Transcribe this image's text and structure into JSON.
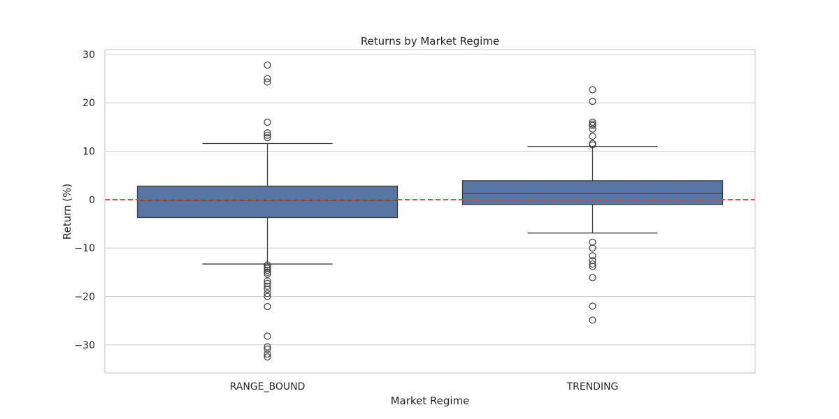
{
  "chart_data": {
    "type": "box",
    "title": "Returns by Market Regime",
    "xlabel": "Market Regime",
    "ylabel": "Return (%)",
    "ylim": [
      -35.8,
      31.0
    ],
    "yticks": [
      30,
      20,
      10,
      0,
      -10,
      -20,
      -30
    ],
    "ytick_labels": [
      "30",
      "20",
      "10",
      "0",
      "−10",
      "−20",
      "−30"
    ],
    "grid": true,
    "box_color": "#5875a4",
    "edge_color": "#3d3d3d",
    "reference_line": {
      "y": 0,
      "color": "#d24a4a",
      "style": "dashed"
    },
    "categories": [
      "RANGE_BOUND",
      "TRENDING"
    ],
    "boxes": [
      {
        "category": "RANGE_BOUND",
        "whisker_low": -13.3,
        "q1": -3.7,
        "median": -0.1,
        "q3": 2.8,
        "whisker_high": 11.6,
        "outliers": [
          27.8,
          25.0,
          24.3,
          16.0,
          13.8,
          13.3,
          12.8,
          -13.5,
          -13.9,
          -14.2,
          -14.6,
          -15.0,
          -15.4,
          -16.8,
          -17.3,
          -17.9,
          -18.5,
          -19.4,
          -20.0,
          -22.1,
          -28.2,
          -30.4,
          -30.9,
          -31.9,
          -32.5
        ]
      },
      {
        "category": "TRENDING",
        "whisker_low": -6.9,
        "q1": -1.0,
        "median": 1.3,
        "q3": 3.9,
        "whisker_high": 11.0,
        "outliers": [
          22.7,
          20.3,
          16.0,
          15.6,
          15.3,
          14.6,
          13.1,
          11.6,
          11.3,
          -8.8,
          -10.0,
          -11.6,
          -12.6,
          -13.3,
          -13.8,
          -16.1,
          -22.0,
          -24.9
        ]
      }
    ]
  }
}
